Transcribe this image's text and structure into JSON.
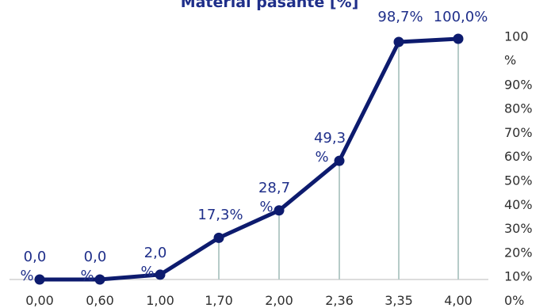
{
  "chart_data": {
    "type": "line",
    "title": "Material pasante [%]",
    "categories": [
      "0,00",
      "0,60",
      "1,00",
      "1,70",
      "2,00",
      "2,36",
      "3,35",
      "4,00"
    ],
    "values": [
      0.0,
      0.0,
      2.0,
      17.3,
      28.7,
      49.3,
      98.7,
      100.0
    ],
    "data_labels": [
      [
        "0,0",
        "%"
      ],
      [
        "0,0",
        "%"
      ],
      [
        "2,0",
        "%"
      ],
      [
        "17,3%"
      ],
      [
        "28,7",
        "%"
      ],
      [
        "49,3",
        "%"
      ],
      [
        "98,7%"
      ],
      [
        "100,0%"
      ]
    ],
    "y_ticks": [
      [
        "0%"
      ],
      [
        "10%"
      ],
      [
        "20%"
      ],
      [
        "30%"
      ],
      [
        "40%"
      ],
      [
        "50%"
      ],
      [
        "60%"
      ],
      [
        "70%"
      ],
      [
        "80%"
      ],
      [
        "90%"
      ],
      [
        "100",
        "%"
      ]
    ],
    "ylim": [
      0,
      100
    ],
    "axis_position": "right",
    "grid": false,
    "drop_lines": true,
    "colors": {
      "line": "#0d1b6e",
      "marker": "#0d1b6e",
      "drop_line": "#b6cbc8",
      "label": "#1f2f8a",
      "tick": "#2f2f2f",
      "axis": "#c8c8c8"
    }
  }
}
